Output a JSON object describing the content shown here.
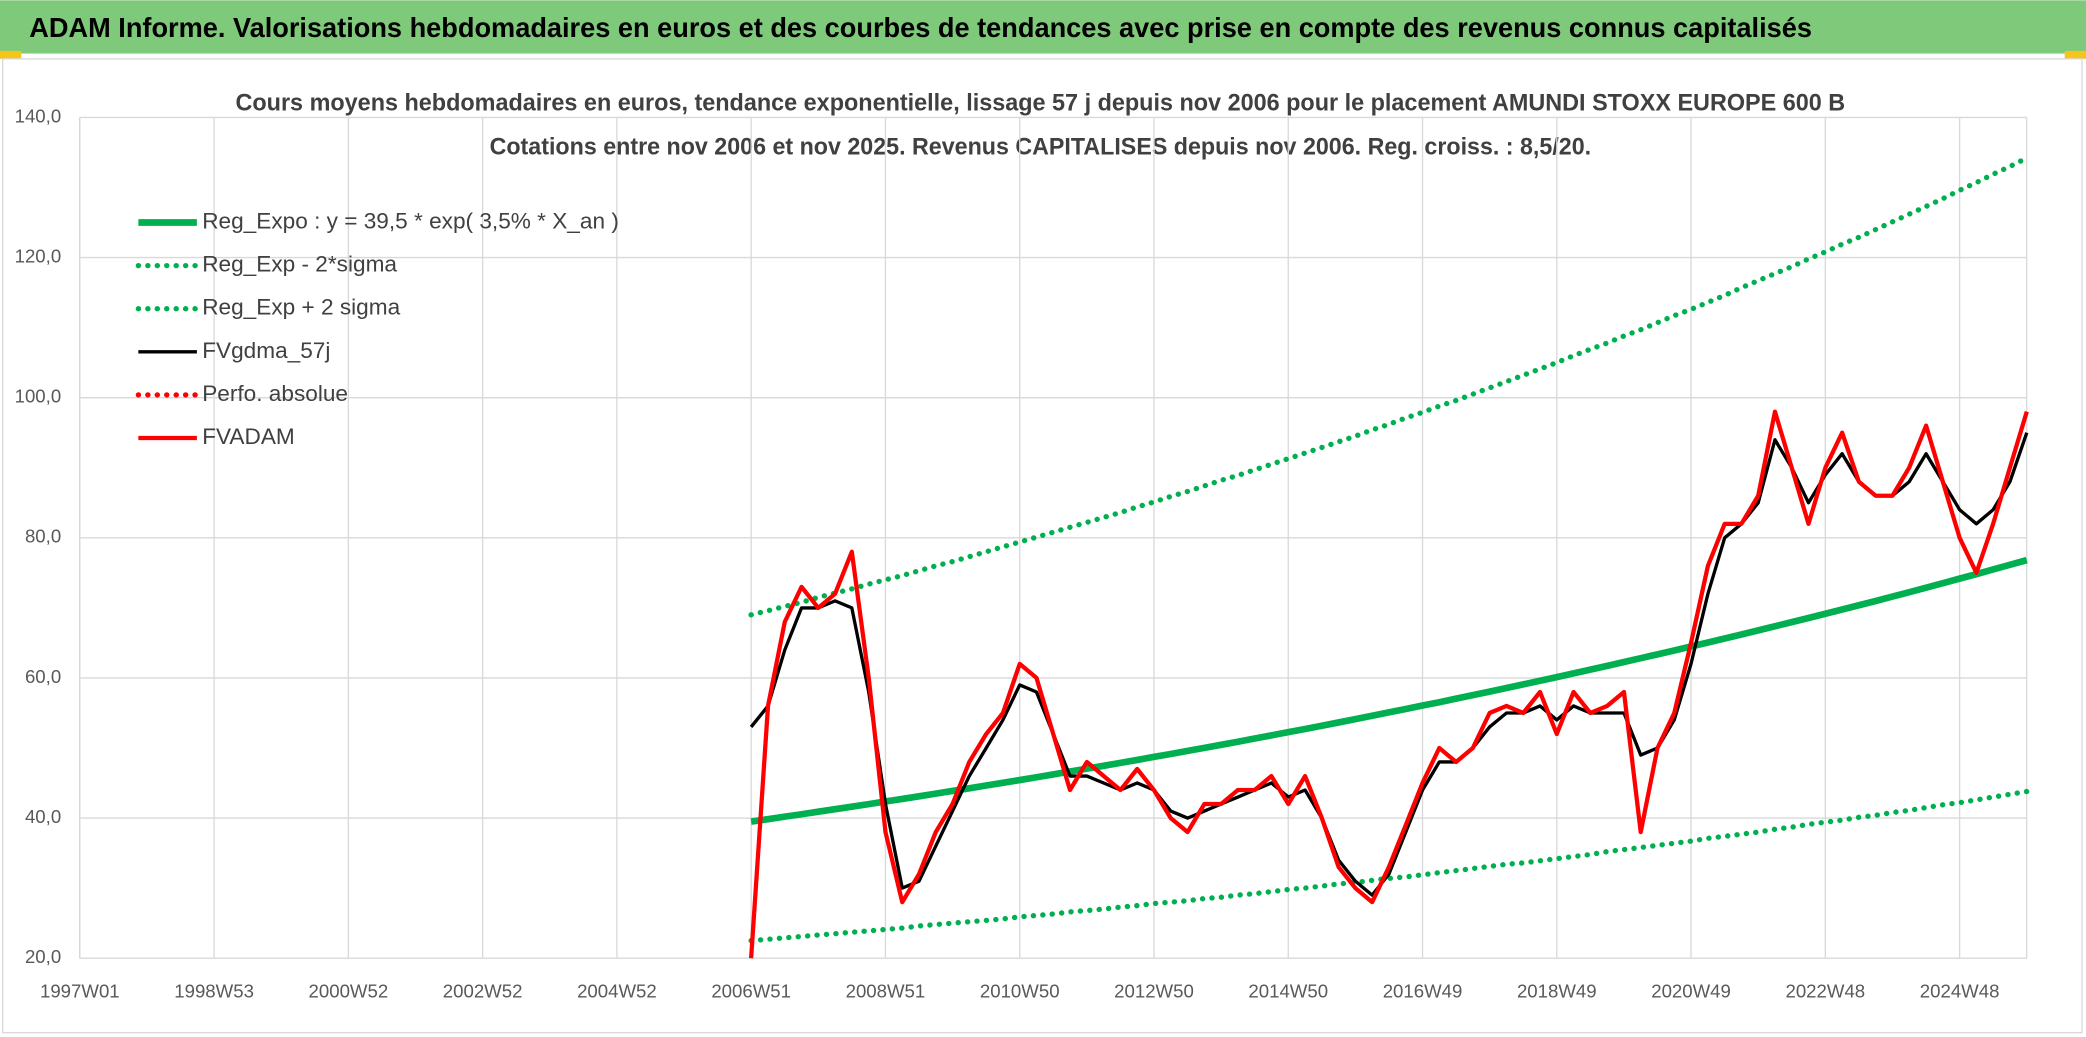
{
  "header": {
    "title": "ADAM Informe. Valorisations hebdomadaires en euros et des courbes de tendances avec prise en compte des revenus connus capitalisés"
  },
  "chart_data": {
    "type": "line",
    "title": "Cours moyens hebdomadaires en euros, tendance exponentielle, lissage 57 j depuis nov 2006 pour le placement AMUNDI STOXX EUROPE 600 B",
    "subtitle": "Cotations entre nov 2006 et nov 2025. Revenus CAPITALISES depuis nov 2006. Reg. croiss. : 8,5/20.",
    "categories": [
      "1997W01",
      null,
      null,
      null,
      null,
      null,
      null,
      null,
      "1998W53",
      null,
      null,
      null,
      null,
      null,
      null,
      null,
      "2000W52",
      null,
      null,
      null,
      null,
      null,
      null,
      null,
      "2002W52",
      null,
      null,
      null,
      null,
      null,
      null,
      null,
      "2004W52",
      null,
      null,
      null,
      null,
      null,
      null,
      null,
      "2006W51",
      null,
      null,
      null,
      null,
      null,
      null,
      null,
      "2008W51",
      null,
      null,
      null,
      null,
      null,
      null,
      null,
      "2010W50",
      null,
      null,
      null,
      null,
      null,
      null,
      null,
      "2012W50",
      null,
      null,
      null,
      null,
      null,
      null,
      null,
      "2014W50",
      null,
      null,
      null,
      null,
      null,
      null,
      null,
      "2016W49",
      null,
      null,
      null,
      null,
      null,
      null,
      null,
      "2018W49",
      null,
      null,
      null,
      null,
      null,
      null,
      null,
      "2020W49",
      null,
      null,
      null,
      null,
      null,
      null,
      null,
      "2022W48",
      null,
      null,
      null,
      null,
      null,
      null,
      null,
      "2024W48",
      null,
      null,
      null,
      null
    ],
    "ylim": [
      20,
      140
    ],
    "yticks": [
      {
        "value": 20,
        "label": "20,0"
      },
      {
        "value": 40,
        "label": "40,0"
      },
      {
        "value": 60,
        "label": "60,0"
      },
      {
        "value": 80,
        "label": "80,0"
      },
      {
        "value": 100,
        "label": "100,0"
      },
      {
        "value": 120,
        "label": "120,0"
      },
      {
        "value": 140,
        "label": "140,0"
      }
    ],
    "grid": true,
    "legend": "top-left",
    "series": [
      {
        "name": "Reg_Expo : y = 39,5 * exp( 3,5% *  X_an )",
        "color": "#00b050",
        "style": "solid",
        "values": [
          null,
          null,
          null,
          null,
          null,
          null,
          null,
          null,
          null,
          null,
          null,
          null,
          null,
          null,
          null,
          null,
          null,
          null,
          null,
          null,
          null,
          null,
          null,
          null,
          null,
          null,
          null,
          null,
          null,
          null,
          null,
          null,
          null,
          null,
          null,
          null,
          null,
          null,
          null,
          null,
          39.5,
          39.85,
          40.2,
          40.55,
          40.9,
          41.26,
          41.62,
          41.99,
          42.36,
          42.73,
          43.1,
          43.48,
          43.86,
          44.25,
          44.64,
          45.03,
          45.43,
          45.83,
          46.23,
          46.64,
          47.05,
          47.46,
          47.88,
          48.3,
          48.72,
          49.15,
          49.58,
          50.02,
          50.46,
          50.9,
          51.35,
          51.8,
          52.26,
          52.72,
          53.18,
          53.65,
          54.12,
          54.6,
          55.08,
          55.56,
          56.05,
          56.54,
          57.04,
          57.54,
          58.05,
          58.56,
          59.07,
          59.59,
          60.12,
          60.65,
          61.18,
          61.72,
          62.26,
          62.81,
          63.36,
          63.92,
          64.48,
          65.05,
          65.62,
          66.2,
          66.78,
          67.37,
          67.96,
          68.56,
          69.15,
          69.76,
          70.37,
          70.99,
          71.61,
          72.24,
          72.88,
          73.52,
          74.17,
          74.82,
          75.48,
          76.14,
          76.81
        ]
      },
      {
        "name": "Reg_Exp - 2*sigma",
        "color": "#00b050",
        "style": "dotted",
        "values": [
          null,
          null,
          null,
          null,
          null,
          null,
          null,
          null,
          null,
          null,
          null,
          null,
          null,
          null,
          null,
          null,
          null,
          null,
          null,
          null,
          null,
          null,
          null,
          null,
          null,
          null,
          null,
          null,
          null,
          null,
          null,
          null,
          null,
          null,
          null,
          null,
          null,
          null,
          null,
          null,
          22.5,
          22.7,
          22.9,
          23.1,
          23.3,
          23.5,
          23.7,
          23.9,
          24.1,
          24.3,
          24.6,
          24.8,
          25.0,
          25.2,
          25.4,
          25.6,
          25.9,
          26.1,
          26.3,
          26.6,
          26.8,
          27.0,
          27.3,
          27.5,
          27.8,
          28.0,
          28.2,
          28.5,
          28.7,
          29.0,
          29.2,
          29.5,
          29.8,
          30.0,
          30.3,
          30.6,
          30.8,
          31.1,
          31.4,
          31.6,
          31.9,
          32.2,
          32.5,
          32.8,
          33.1,
          33.4,
          33.6,
          33.9,
          34.2,
          34.5,
          34.8,
          35.2,
          35.5,
          35.8,
          36.1,
          36.4,
          36.7,
          37.1,
          37.4,
          37.7,
          38.0,
          38.4,
          38.7,
          39.1,
          39.4,
          39.7,
          40.1,
          40.4,
          40.8,
          41.1,
          41.5,
          41.9,
          42.2,
          42.6,
          43.0,
          43.4,
          43.8
        ]
      },
      {
        "name": "Reg_Exp + 2 sigma",
        "color": "#00b050",
        "style": "dotted",
        "values": [
          null,
          null,
          null,
          null,
          null,
          null,
          null,
          null,
          null,
          null,
          null,
          null,
          null,
          null,
          null,
          null,
          null,
          null,
          null,
          null,
          null,
          null,
          null,
          null,
          null,
          null,
          null,
          null,
          null,
          null,
          null,
          null,
          null,
          null,
          null,
          null,
          null,
          null,
          null,
          null,
          69.0,
          69.6,
          70.2,
          70.8,
          71.5,
          72.1,
          72.7,
          73.4,
          74.0,
          74.6,
          75.3,
          76.0,
          76.6,
          77.3,
          78.0,
          78.7,
          79.4,
          80.1,
          80.8,
          81.5,
          82.2,
          82.9,
          83.6,
          84.4,
          85.1,
          85.9,
          86.6,
          87.4,
          88.2,
          88.9,
          89.7,
          90.5,
          91.3,
          92.1,
          92.9,
          93.7,
          94.5,
          95.4,
          96.2,
          97.1,
          97.9,
          98.8,
          99.6,
          100.5,
          101.4,
          102.3,
          103.2,
          104.1,
          105.0,
          106.0,
          106.9,
          107.8,
          108.8,
          109.7,
          110.7,
          111.7,
          112.6,
          113.6,
          114.6,
          115.7,
          116.7,
          117.7,
          118.7,
          119.8,
          120.8,
          121.9,
          122.9,
          124.0,
          125.1,
          126.2,
          127.3,
          128.4,
          129.6,
          130.7,
          131.9,
          133.0,
          134.2
        ]
      },
      {
        "name": "FVgdma_57j",
        "color": "#000000",
        "style": "solid",
        "values": [
          null,
          null,
          null,
          null,
          null,
          null,
          null,
          null,
          null,
          null,
          null,
          null,
          null,
          null,
          null,
          null,
          null,
          null,
          null,
          null,
          null,
          null,
          null,
          null,
          null,
          null,
          null,
          null,
          null,
          null,
          null,
          null,
          null,
          null,
          null,
          null,
          null,
          null,
          null,
          null,
          53,
          56,
          64,
          70,
          70,
          71,
          70,
          58,
          42,
          30,
          31,
          36,
          41,
          46,
          50,
          54,
          59,
          58,
          52,
          46,
          46,
          45,
          44,
          45,
          44,
          41,
          40,
          41,
          42,
          43,
          44,
          45,
          43,
          44,
          40,
          34,
          31,
          29,
          32,
          38,
          44,
          48,
          48,
          50,
          53,
          55,
          55,
          56,
          54,
          56,
          55,
          55,
          55,
          49,
          50,
          54,
          62,
          72,
          80,
          82,
          85,
          94,
          90,
          85,
          89,
          92,
          88,
          86,
          86,
          88,
          92,
          88,
          84,
          82,
          84,
          88,
          95
        ]
      },
      {
        "name": "Perfo. absolue",
        "color": "#ff0000",
        "style": "dotted",
        "values": [
          null,
          null,
          null,
          null,
          null,
          null,
          null,
          null,
          null,
          null,
          null,
          null,
          null,
          null,
          null,
          null,
          null,
          null,
          null,
          null,
          null,
          null,
          null,
          null,
          null,
          null,
          null,
          null,
          null,
          null,
          null,
          null,
          null,
          null,
          null,
          null,
          null,
          null,
          null,
          null,
          null,
          null,
          null,
          null,
          null,
          null,
          null,
          null,
          null,
          null,
          null,
          null,
          null,
          null,
          null,
          null,
          null,
          null,
          null,
          null,
          null,
          null,
          null,
          null,
          null,
          null,
          null,
          null,
          null,
          null,
          null,
          null,
          null,
          null,
          null,
          null,
          null,
          null,
          null,
          null,
          null,
          null,
          null,
          null,
          null,
          null,
          null,
          null,
          null,
          null,
          null,
          null,
          null,
          null,
          null,
          null,
          null,
          null,
          null,
          null,
          null,
          null,
          null,
          null,
          null,
          null,
          null,
          null,
          null,
          null,
          null,
          null,
          null,
          null,
          null,
          null,
          null
        ]
      },
      {
        "name": "FVADAM",
        "color": "#ff0000",
        "style": "solid",
        "values": [
          null,
          null,
          null,
          null,
          null,
          null,
          null,
          null,
          null,
          null,
          null,
          null,
          null,
          null,
          null,
          null,
          null,
          null,
          null,
          null,
          null,
          null,
          null,
          null,
          null,
          null,
          null,
          null,
          null,
          null,
          null,
          null,
          null,
          null,
          null,
          null,
          null,
          null,
          null,
          null,
          20,
          56,
          68,
          73,
          70,
          72,
          78,
          60,
          38,
          28,
          32,
          38,
          42,
          48,
          52,
          55,
          62,
          60,
          52,
          44,
          48,
          46,
          44,
          47,
          44,
          40,
          38,
          42,
          42,
          44,
          44,
          46,
          42,
          46,
          40,
          33,
          30,
          28,
          33,
          39,
          45,
          50,
          48,
          50,
          55,
          56,
          55,
          58,
          52,
          58,
          55,
          56,
          58,
          38,
          50,
          55,
          65,
          76,
          82,
          82,
          86,
          98,
          90,
          82,
          90,
          95,
          88,
          86,
          86,
          90,
          96,
          88,
          80,
          75,
          82,
          90,
          98
        ]
      }
    ]
  }
}
